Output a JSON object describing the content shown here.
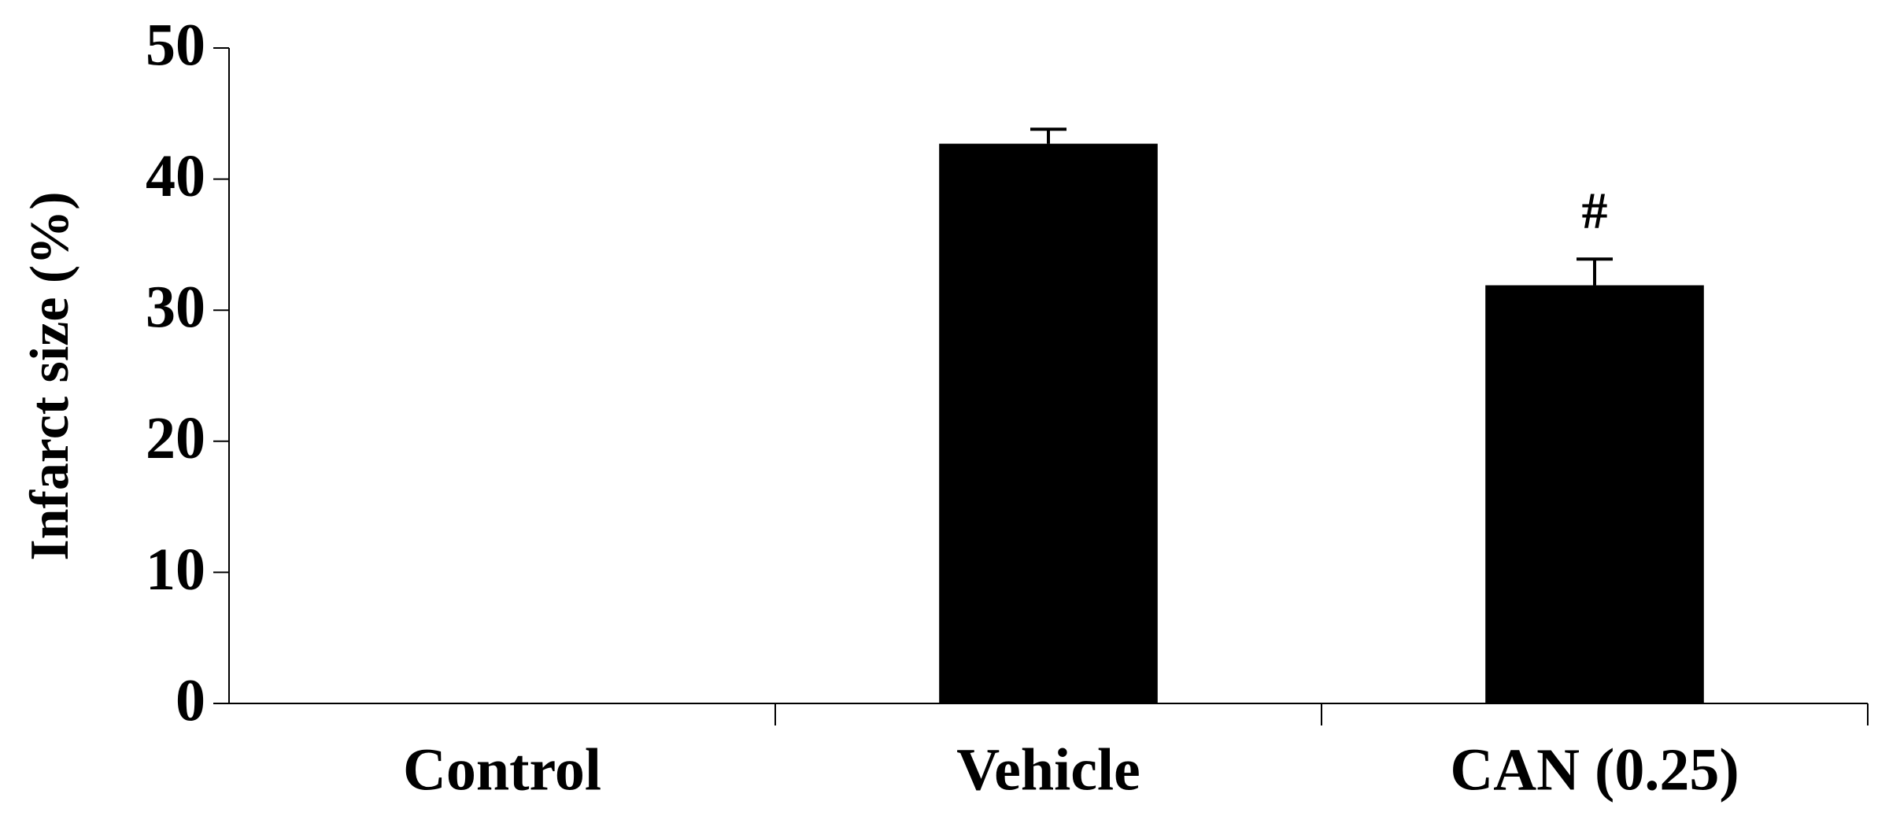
{
  "chart_data": {
    "type": "bar",
    "y_label": "Infarct size (%)",
    "categories": [
      "Control",
      "Vehicle",
      "CAN (0.25)"
    ],
    "values": [
      0,
      42.7,
      31.9
    ],
    "errors": [
      null,
      1.1,
      2.0
    ],
    "value_annotations": [
      null,
      null,
      "#"
    ],
    "color": "#000000",
    "ylim": [
      0,
      50
    ],
    "yticks": [
      0,
      10,
      20,
      30,
      40,
      50
    ],
    "grid": false
  }
}
